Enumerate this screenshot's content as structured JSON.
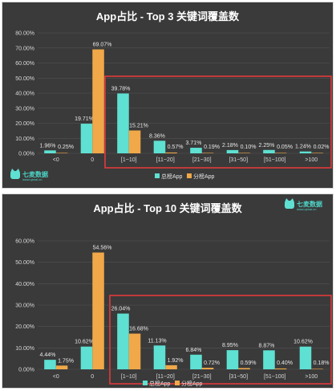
{
  "colors": {
    "total": "#5ee0d2",
    "category": "#f0a848",
    "highlight": "#e23a3a",
    "panel_bg": "#3a3a3a",
    "grid": "#555555"
  },
  "brand": {
    "name": "七麦数据",
    "url": "www.qimai.cn"
  },
  "chart_data": [
    {
      "type": "bar",
      "title": "App占比 - Top 3 关键词覆盖数",
      "categories": [
        "<0",
        "0",
        "[1~10]",
        "[11~20]",
        "[21~30]",
        "[31~50]",
        "[51~100]",
        ">100"
      ],
      "ylim": [
        0,
        80
      ],
      "yticks": [
        "0.00%",
        "10.00%",
        "20.00%",
        "30.00%",
        "40.00%",
        "50.00%",
        "60.00%",
        "70.00%",
        "80.00%"
      ],
      "series": [
        {
          "name": "总榜App",
          "values": [
            1.96,
            19.71,
            39.78,
            8.36,
            3.71,
            2.18,
            2.25,
            1.24
          ],
          "labels": [
            "1.96%",
            "19.71%",
            "39.78%",
            "8.36%",
            "3.71%",
            "2.18%",
            "2.25%",
            "1.24%"
          ]
        },
        {
          "name": "分榜App",
          "values": [
            0.25,
            69.07,
            15.21,
            0.57,
            0.19,
            0.1,
            0.05,
            0.02
          ],
          "labels": [
            "0.25%",
            "69.07%",
            "15.21%",
            "0.57%",
            "0.19%",
            "0.10%",
            "0.05%",
            "0.02%"
          ]
        }
      ],
      "grid": true,
      "legend": "bottom-center",
      "highlight_categories": [
        "[1~10]",
        ">100"
      ]
    },
    {
      "type": "bar",
      "title": "App占比 - Top 10 关键词覆盖数",
      "categories": [
        "<0",
        "0",
        "[1~10]",
        "[11~20]",
        "[21~30]",
        "[31~50]",
        "[51~100]",
        ">100"
      ],
      "ylim": [
        0,
        60
      ],
      "yticks": [
        "0.00%",
        "10.00%",
        "20.00%",
        "30.00%",
        "40.00%",
        "50.00%",
        "60.00%"
      ],
      "series": [
        {
          "name": "总榜App",
          "values": [
            4.44,
            10.62,
            26.04,
            11.13,
            6.84,
            8.95,
            8.87,
            10.62
          ],
          "labels": [
            "4.44%",
            "10.62%",
            "26.04%",
            "11.13%",
            "6.84%",
            "8.95%",
            "8.87%",
            "10.62%"
          ]
        },
        {
          "name": "分榜App",
          "values": [
            1.75,
            54.56,
            16.68,
            1.92,
            0.72,
            0.59,
            0.4,
            0.18
          ],
          "labels": [
            "1.75%",
            "54.56%",
            "16.68%",
            "1.92%",
            "0.72%",
            "0.59%",
            "0.40%",
            "0.18%"
          ]
        }
      ],
      "grid": true,
      "legend": "bottom-center",
      "highlight_categories": [
        "[1~10]",
        ">100"
      ]
    }
  ]
}
